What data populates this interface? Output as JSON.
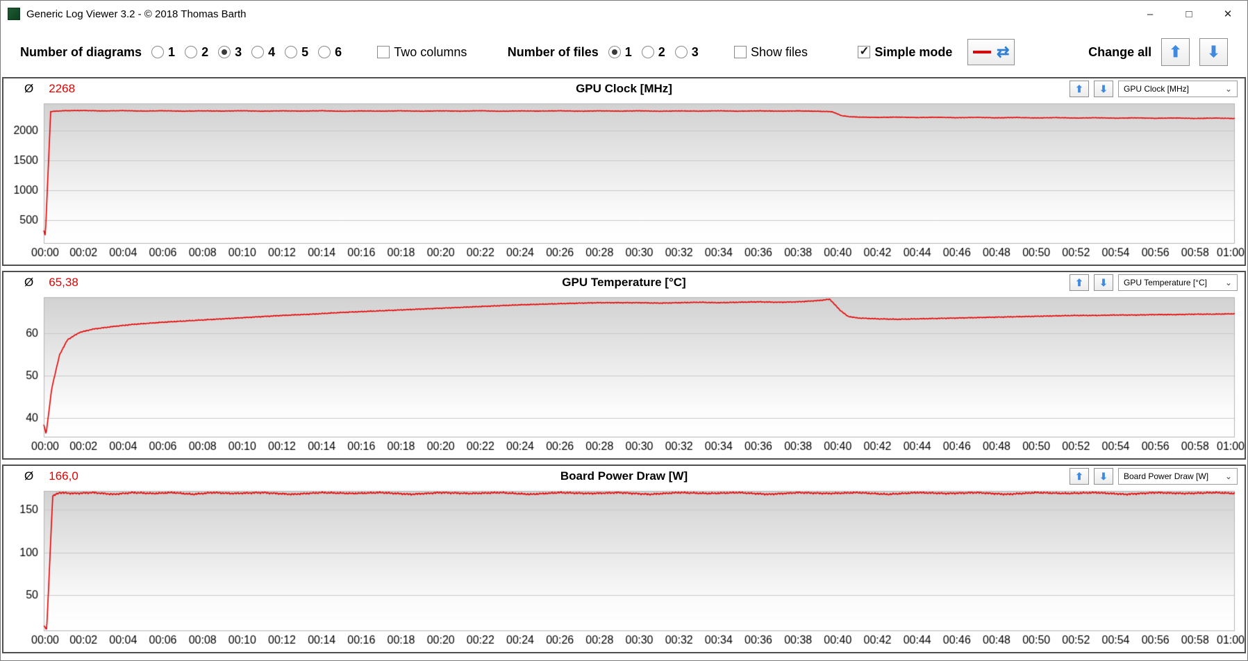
{
  "window": {
    "title": "Generic Log Viewer 3.2 - © 2018 Thomas Barth"
  },
  "icons": {
    "minimize": "–",
    "maximize": "□",
    "close": "✕",
    "arrow_up": "⬆",
    "arrow_down": "⬇",
    "swap": "⇄",
    "chevron": "⌄",
    "avg_symbol": "Ø"
  },
  "toolbar": {
    "diagrams_label": "Number of diagrams",
    "diagram_options": [
      "1",
      "2",
      "3",
      "4",
      "5",
      "6"
    ],
    "diagrams_selected": "3",
    "two_columns_label": "Two columns",
    "two_columns_checked": false,
    "files_label": "Number of files",
    "file_options": [
      "1",
      "2",
      "3"
    ],
    "files_selected": "1",
    "show_files_label": "Show files",
    "show_files_checked": false,
    "simple_mode_label": "Simple mode",
    "simple_mode_checked": true,
    "change_all_label": "Change all"
  },
  "charts": [
    {
      "avg": "2268",
      "title": "GPU Clock [MHz]",
      "dropdown": "GPU Clock [MHz]"
    },
    {
      "avg": "65,38",
      "title": "GPU Temperature [°C]",
      "dropdown": "GPU Temperature [°C]"
    },
    {
      "avg": "166,0",
      "title": "Board Power Draw [W]",
      "dropdown": "Board Power Draw [W]"
    }
  ],
  "chart_data": [
    {
      "type": "line",
      "title": "GPU Clock [MHz]",
      "series_name": "GPU Clock",
      "unit": "MHz",
      "average": 2268,
      "color": "#e60000",
      "x_range": [
        0,
        60
      ],
      "ylim": [
        100,
        2450
      ],
      "y_ticks": [
        500,
        1000,
        1500,
        2000
      ],
      "x_tick_pos": [
        0,
        2,
        4,
        6,
        8,
        10,
        12,
        14,
        16,
        18,
        20,
        22,
        24,
        26,
        28,
        30,
        32,
        34,
        36,
        38,
        40,
        42,
        44,
        46,
        48,
        50,
        52,
        54,
        56,
        58,
        60
      ],
      "x_ticks": [
        "00:00",
        "00:02",
        "00:04",
        "00:06",
        "00:08",
        "00:10",
        "00:12",
        "00:14",
        "00:16",
        "00:18",
        "00:20",
        "00:22",
        "00:24",
        "00:26",
        "00:28",
        "00:30",
        "00:32",
        "00:34",
        "00:36",
        "00:38",
        "00:40",
        "00:42",
        "00:44",
        "00:46",
        "00:48",
        "00:50",
        "00:52",
        "00:54",
        "00:56",
        "00:58",
        "01:00"
      ],
      "noise": 5,
      "points": [
        [
          0,
          320
        ],
        [
          0.08,
          235
        ],
        [
          0.35,
          2315
        ],
        [
          1,
          2328
        ],
        [
          2,
          2332
        ],
        [
          3,
          2324
        ],
        [
          4,
          2330
        ],
        [
          5,
          2322
        ],
        [
          6,
          2328
        ],
        [
          7,
          2320
        ],
        [
          8,
          2326
        ],
        [
          9,
          2322
        ],
        [
          10,
          2328
        ],
        [
          11,
          2320
        ],
        [
          12,
          2326
        ],
        [
          13,
          2322
        ],
        [
          14,
          2328
        ],
        [
          15,
          2319
        ],
        [
          16,
          2325
        ],
        [
          17,
          2321
        ],
        [
          18,
          2327
        ],
        [
          19,
          2320
        ],
        [
          20,
          2326
        ],
        [
          21,
          2321
        ],
        [
          22,
          2328
        ],
        [
          23,
          2319
        ],
        [
          24,
          2325
        ],
        [
          25,
          2322
        ],
        [
          26,
          2327
        ],
        [
          27,
          2320
        ],
        [
          28,
          2326
        ],
        [
          29,
          2321
        ],
        [
          30,
          2327
        ],
        [
          31,
          2319
        ],
        [
          32,
          2325
        ],
        [
          33,
          2321
        ],
        [
          34,
          2327
        ],
        [
          35,
          2320
        ],
        [
          36,
          2326
        ],
        [
          37,
          2321
        ],
        [
          38,
          2325
        ],
        [
          39,
          2319
        ],
        [
          39.7,
          2313
        ],
        [
          40.2,
          2245
        ],
        [
          40.6,
          2228
        ],
        [
          41,
          2222
        ],
        [
          42,
          2216
        ],
        [
          43,
          2221
        ],
        [
          44,
          2214
        ],
        [
          45,
          2219
        ],
        [
          46,
          2211
        ],
        [
          47,
          2217
        ],
        [
          48,
          2209
        ],
        [
          49,
          2215
        ],
        [
          50,
          2207
        ],
        [
          51,
          2213
        ],
        [
          52,
          2205
        ],
        [
          53,
          2211
        ],
        [
          54,
          2203
        ],
        [
          55,
          2209
        ],
        [
          56,
          2201
        ],
        [
          57,
          2207
        ],
        [
          58,
          2199
        ],
        [
          59,
          2205
        ],
        [
          60,
          2198
        ]
      ]
    },
    {
      "type": "line",
      "title": "GPU Temperature [°C]",
      "series_name": "GPU Temperature",
      "unit": "°C",
      "average": 65.38,
      "color": "#e60000",
      "x_range": [
        0,
        60
      ],
      "ylim": [
        35.5,
        68.5
      ],
      "y_ticks": [
        40,
        50,
        60
      ],
      "x_tick_pos": [
        0,
        2,
        4,
        6,
        8,
        10,
        12,
        14,
        16,
        18,
        20,
        22,
        24,
        26,
        28,
        30,
        32,
        34,
        36,
        38,
        40,
        42,
        44,
        46,
        48,
        50,
        52,
        54,
        56,
        58,
        60
      ],
      "x_ticks": [
        "00:00",
        "00:02",
        "00:04",
        "00:06",
        "00:08",
        "00:10",
        "00:12",
        "00:14",
        "00:16",
        "00:18",
        "00:20",
        "00:22",
        "00:24",
        "00:26",
        "00:28",
        "00:30",
        "00:32",
        "00:34",
        "00:36",
        "00:38",
        "00:40",
        "00:42",
        "00:44",
        "00:46",
        "00:48",
        "00:50",
        "00:52",
        "00:54",
        "00:56",
        "00:58",
        "01:00"
      ],
      "noise": 0.12,
      "points": [
        [
          0,
          38.5
        ],
        [
          0.12,
          36.3
        ],
        [
          0.4,
          47
        ],
        [
          0.8,
          55
        ],
        [
          1.2,
          58.5
        ],
        [
          1.8,
          60.2
        ],
        [
          2.5,
          61
        ],
        [
          3.5,
          61.6
        ],
        [
          4.5,
          62.1
        ],
        [
          6,
          62.6
        ],
        [
          7.5,
          63
        ],
        [
          9,
          63.4
        ],
        [
          10.5,
          63.8
        ],
        [
          12,
          64.2
        ],
        [
          13.5,
          64.5
        ],
        [
          15,
          64.9
        ],
        [
          16.5,
          65.2
        ],
        [
          18,
          65.5
        ],
        [
          19.5,
          65.8
        ],
        [
          21,
          66.1
        ],
        [
          22.5,
          66.4
        ],
        [
          24,
          66.7
        ],
        [
          25.5,
          66.9
        ],
        [
          27,
          67.1
        ],
        [
          28,
          67.2
        ],
        [
          29,
          67.2
        ],
        [
          30,
          67.2
        ],
        [
          31,
          67.1
        ],
        [
          32,
          67.2
        ],
        [
          33,
          67.3
        ],
        [
          34,
          67.2
        ],
        [
          35,
          67.3
        ],
        [
          36,
          67.4
        ],
        [
          37,
          67.3
        ],
        [
          38,
          67.4
        ],
        [
          39,
          67.7
        ],
        [
          39.6,
          68
        ],
        [
          40.1,
          65.5
        ],
        [
          40.5,
          64
        ],
        [
          41,
          63.6
        ],
        [
          42,
          63.4
        ],
        [
          43,
          63.3
        ],
        [
          44,
          63.4
        ],
        [
          45,
          63.5
        ],
        [
          46,
          63.6
        ],
        [
          47,
          63.7
        ],
        [
          48,
          63.8
        ],
        [
          49,
          63.9
        ],
        [
          50,
          64
        ],
        [
          51,
          64.1
        ],
        [
          52,
          64.2
        ],
        [
          53,
          64.2
        ],
        [
          54,
          64.3
        ],
        [
          55,
          64.3
        ],
        [
          56,
          64.4
        ],
        [
          57,
          64.4
        ],
        [
          58,
          64.5
        ],
        [
          59,
          64.5
        ],
        [
          60,
          64.6
        ]
      ]
    },
    {
      "type": "line",
      "title": "Board Power Draw [W]",
      "series_name": "Board Power Draw",
      "unit": "W",
      "average": 166.0,
      "color": "#e60000",
      "x_range": [
        0,
        60
      ],
      "ylim": [
        8,
        172
      ],
      "y_ticks": [
        50,
        100,
        150
      ],
      "x_tick_pos": [
        0,
        2,
        4,
        6,
        8,
        10,
        12,
        14,
        16,
        18,
        20,
        22,
        24,
        26,
        28,
        30,
        32,
        34,
        36,
        38,
        40,
        42,
        44,
        46,
        48,
        50,
        52,
        54,
        56,
        58,
        60
      ],
      "x_ticks": [
        "00:00",
        "00:02",
        "00:04",
        "00:06",
        "00:08",
        "00:10",
        "00:12",
        "00:14",
        "00:16",
        "00:18",
        "00:20",
        "00:22",
        "00:24",
        "00:26",
        "00:28",
        "00:30",
        "00:32",
        "00:34",
        "00:36",
        "00:38",
        "00:40",
        "00:42",
        "00:44",
        "00:46",
        "00:48",
        "00:50",
        "00:52",
        "00:54",
        "00:56",
        "00:58",
        "01:00"
      ],
      "noise": 1.2,
      "points": [
        [
          0,
          14
        ],
        [
          0.15,
          10
        ],
        [
          0.45,
          166
        ],
        [
          0.8,
          170
        ],
        [
          1.5,
          169
        ],
        [
          2.5,
          170
        ],
        [
          3.5,
          168
        ],
        [
          4.5,
          170
        ],
        [
          5.5,
          169
        ],
        [
          6.5,
          170
        ],
        [
          7.5,
          168
        ],
        [
          8.5,
          170
        ],
        [
          9.5,
          169
        ],
        [
          11,
          170
        ],
        [
          12.5,
          168
        ],
        [
          14,
          170
        ],
        [
          15.5,
          169
        ],
        [
          17,
          170
        ],
        [
          18.5,
          168
        ],
        [
          20,
          170
        ],
        [
          21.5,
          169
        ],
        [
          23,
          170
        ],
        [
          24.5,
          168
        ],
        [
          26,
          170
        ],
        [
          27.5,
          169
        ],
        [
          29,
          170
        ],
        [
          30.5,
          168
        ],
        [
          32,
          170
        ],
        [
          33.5,
          169
        ],
        [
          35,
          170
        ],
        [
          36.5,
          168
        ],
        [
          38,
          170
        ],
        [
          39.5,
          169
        ],
        [
          41,
          170
        ],
        [
          42.5,
          168
        ],
        [
          44,
          170
        ],
        [
          45.5,
          169
        ],
        [
          47,
          170
        ],
        [
          48.5,
          168
        ],
        [
          50,
          170
        ],
        [
          51.5,
          169
        ],
        [
          53,
          170
        ],
        [
          54.5,
          168
        ],
        [
          56,
          170
        ],
        [
          57.5,
          169
        ],
        [
          59,
          170
        ],
        [
          60,
          169
        ]
      ]
    }
  ]
}
